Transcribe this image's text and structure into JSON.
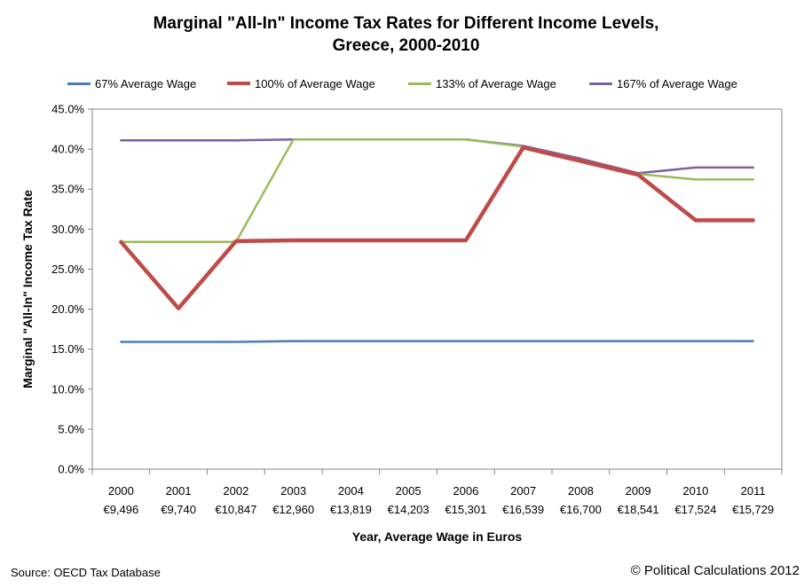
{
  "chart_data": {
    "type": "line",
    "title_line1": "Marginal \"All-In\" Income Tax Rates for Different Income Levels,",
    "title_line2": "Greece, 2000-2010",
    "xlabel": "Year, Average Wage in Euros",
    "ylabel": "Marginal \"All-In\" Income Tax Rate",
    "ylim": [
      0,
      45
    ],
    "y_ticks": [
      "0.0%",
      "5.0%",
      "10.0%",
      "15.0%",
      "20.0%",
      "25.0%",
      "30.0%",
      "35.0%",
      "40.0%",
      "45.0%"
    ],
    "categories": [
      {
        "year": "2000",
        "wage": "€9,496"
      },
      {
        "year": "2001",
        "wage": "€9,740"
      },
      {
        "year": "2002",
        "wage": "€10,847"
      },
      {
        "year": "2003",
        "wage": "€12,960"
      },
      {
        "year": "2004",
        "wage": "€13,819"
      },
      {
        "year": "2005",
        "wage": "€14,203"
      },
      {
        "year": "2006",
        "wage": "€15,301"
      },
      {
        "year": "2007",
        "wage": "€16,539"
      },
      {
        "year": "2008",
        "wage": "€16,700"
      },
      {
        "year": "2009",
        "wage": "€18,541"
      },
      {
        "year": "2010",
        "wage": "€17,524"
      },
      {
        "year": "2011",
        "wage": "€15,729"
      }
    ],
    "series": [
      {
        "name": "67% Average Wage",
        "color": "#4A7EBB",
        "width": "thin",
        "values": [
          15.9,
          15.9,
          15.9,
          16.0,
          16.0,
          16.0,
          16.0,
          16.0,
          16.0,
          16.0,
          16.0,
          16.0
        ]
      },
      {
        "name": "167% of Average Wage",
        "color": "#7F60A0",
        "width": "thin",
        "values": [
          41.1,
          41.1,
          41.1,
          41.2,
          41.2,
          41.2,
          41.2,
          40.4,
          38.8,
          37.0,
          37.7,
          37.7
        ]
      },
      {
        "name": "133% of Average Wage",
        "color": "#9BBB59",
        "width": "thin",
        "values": [
          28.4,
          28.4,
          28.4,
          41.2,
          41.2,
          41.2,
          41.2,
          40.3,
          38.6,
          36.9,
          36.2,
          36.2
        ]
      },
      {
        "name": "100% of Average Wage",
        "color": "#BE4B48",
        "width": "thick",
        "values": [
          28.4,
          20.1,
          28.5,
          28.6,
          28.6,
          28.6,
          28.6,
          40.2,
          38.5,
          36.8,
          31.1,
          31.1
        ]
      }
    ],
    "legend_order": [
      "67% Average Wage",
      "100% of Average Wage",
      "133% of Average Wage",
      "167% of Average Wage"
    ],
    "grid": false,
    "legend_position": "top"
  },
  "source": "Source: OECD Tax Database",
  "credit": "© Political Calculations 2012"
}
